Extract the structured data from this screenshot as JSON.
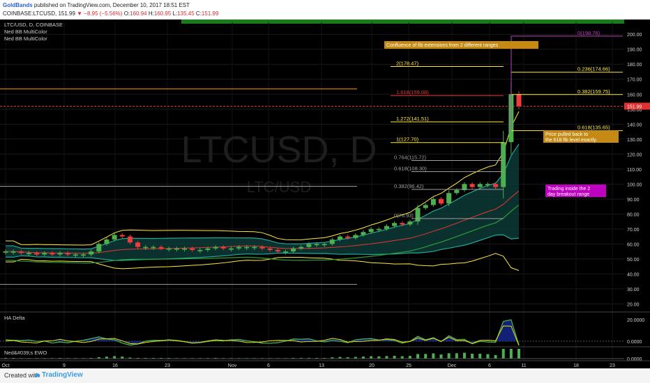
{
  "header": {
    "user": "GoldBands",
    "published_text": "published on TradingView.com, December 10, 2017 18:51 EST",
    "symbol": "COINBASE:LTCUSD,",
    "last": "151.99",
    "change": "−8.95 (−5.56%)",
    "o_label": "O:",
    "o": "160.94",
    "h_label": "H:",
    "h": "160.95",
    "l_label": "L:",
    "l": "135.45",
    "c_label": "C:",
    "c": "151.99"
  },
  "legend": {
    "title": "LTC/USD, D, COINBASE",
    "ind1": "Ned BB MultiColor",
    "ind2": "Ned BB MultiColor"
  },
  "watermark": {
    "big": "LTCUSD, D",
    "small": "LTC/USD"
  },
  "panes": {
    "delta": "HA Delta",
    "ewo": "Ned&#039;s EWO"
  },
  "footer": {
    "created": "Created with",
    "brand": "TradingView"
  },
  "colors": {
    "up": "#4caf50",
    "down": "#ef3b3b",
    "bb_band": "#26a69a",
    "fib": "#ffeb3b",
    "fib_red": "#e53935",
    "orange": "#ff9800",
    "green_mid": "#2e9d3a",
    "price_tag": "#e03030"
  },
  "chart_data": {
    "type": "candlestick",
    "ylim": [
      16,
      208
    ],
    "y_ticks": [
      "200.00",
      "190.00",
      "180.00",
      "170.00",
      "160.00",
      "150.00",
      "140.00",
      "130.00",
      "120.00",
      "110.00",
      "100.00",
      "90.00",
      "80.00",
      "70.00",
      "60.00",
      "50.00",
      "40.00",
      "30.00",
      "20.00"
    ],
    "x_ticks": [
      "Oct",
      "9",
      "16",
      "23",
      "Nov",
      "6",
      "13",
      "20",
      "25",
      "Dec",
      "6",
      "11",
      "18",
      "23"
    ],
    "last_price_label": "151.99",
    "fib_labels": [
      {
        "text": "0(198.76)",
        "value": 198.76,
        "color": "purple"
      },
      {
        "text": "2(178.47)",
        "value": 178.47,
        "color": "yellow"
      },
      {
        "text": "0.236(174.66)",
        "value": 174.66,
        "color": "yellow"
      },
      {
        "text": "1.618(159.08)",
        "value": 159.08,
        "color": "red"
      },
      {
        "text": "0.382(159.75)",
        "value": 159.75,
        "color": "yellow"
      },
      {
        "text": "1.272(141.51)",
        "value": 141.51,
        "color": "yellow"
      },
      {
        "text": "0.618(135.65)",
        "value": 135.65,
        "color": "yellow"
      },
      {
        "text": "1(127.70)",
        "value": 127.7,
        "color": "yellow"
      },
      {
        "text": "0.764(115.72)",
        "value": 115.72,
        "color": "grey"
      },
      {
        "text": "0.618(108.30)",
        "value": 108.3,
        "color": "grey"
      },
      {
        "text": "0.382(96.42)",
        "value": 96.42,
        "color": "grey"
      },
      {
        "text": "0(76.93)",
        "value": 76.93,
        "color": "grey"
      }
    ],
    "annotations": [
      {
        "text": "Confluence of fib extensions from 2 different ranges"
      },
      {
        "text": "Price pulled back to the 618 fib level exactly."
      },
      {
        "text": "Trading inside the 2 day breakout range"
      }
    ],
    "closes": [
      55,
      55,
      54,
      54,
      53,
      54,
      53,
      54,
      53,
      53,
      53,
      55,
      60,
      63,
      66,
      65,
      61,
      58,
      58,
      58,
      57,
      57,
      57,
      57,
      56,
      56,
      57,
      58,
      57,
      57,
      58,
      58,
      58,
      57,
      56,
      55,
      55,
      57,
      58,
      60,
      60,
      60,
      63,
      65,
      64,
      66,
      68,
      70,
      70,
      72,
      74,
      73,
      75,
      84,
      86,
      90,
      87,
      94,
      96,
      100,
      98,
      100,
      100,
      98,
      128,
      160,
      152
    ],
    "delta_ticks": [
      "20.0000",
      "0.0000"
    ],
    "ewo_ticks": [
      "0.0000"
    ]
  }
}
